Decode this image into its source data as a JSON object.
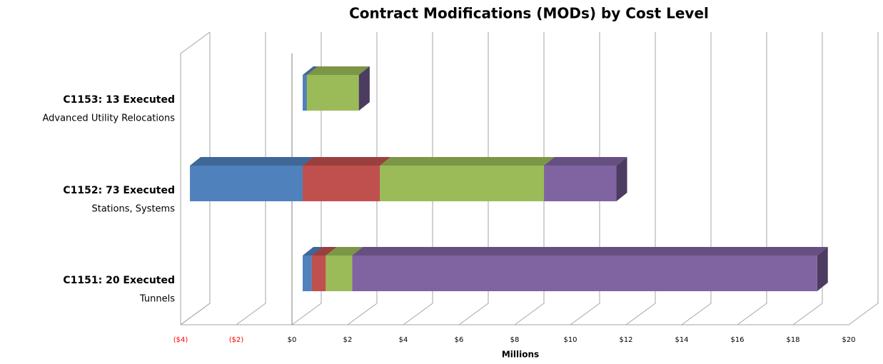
{
  "chart_data": {
    "type": "bar3d_stacked_horizontal",
    "title": "Contract Modifications (MODs) by Cost Level",
    "x_axis_label": "Millions",
    "categories": [
      "C1151: 20 Executed",
      "C1152: 73 Executed",
      "C1153: 13 Executed"
    ],
    "category_descriptions": [
      "Tunnels",
      "Stations, Systems",
      "Advanced Utility Relocations"
    ],
    "series": [
      {
        "color": "#4f81bd",
        "values": [
          0.33,
          -4.05,
          0.15
        ]
      },
      {
        "color": "#c0504d",
        "values": [
          0.5,
          2.77,
          0
        ]
      },
      {
        "color": "#9bbb59",
        "values": [
          0.95,
          5.9,
          1.87
        ]
      },
      {
        "color": "#8064a2",
        "values": [
          16.7,
          2.6,
          0
        ]
      }
    ],
    "xlim": [
      -4,
      20
    ],
    "xticks": [
      {
        "value": -4,
        "label": "($4)"
      },
      {
        "value": -2,
        "label": "($2)"
      },
      {
        "value": 0,
        "label": "$0"
      },
      {
        "value": 2,
        "label": "$2"
      },
      {
        "value": 4,
        "label": "$4"
      },
      {
        "value": 6,
        "label": "$6"
      },
      {
        "value": 8,
        "label": "$8"
      },
      {
        "value": 10,
        "label": "$10"
      },
      {
        "value": 12,
        "label": "$12"
      },
      {
        "value": 14,
        "label": "$14"
      },
      {
        "value": 16,
        "label": "$16"
      },
      {
        "value": 18,
        "label": "$18"
      },
      {
        "value": 20,
        "label": "$20"
      }
    ],
    "negative_label_color": "#ff0000",
    "grid": true
  }
}
